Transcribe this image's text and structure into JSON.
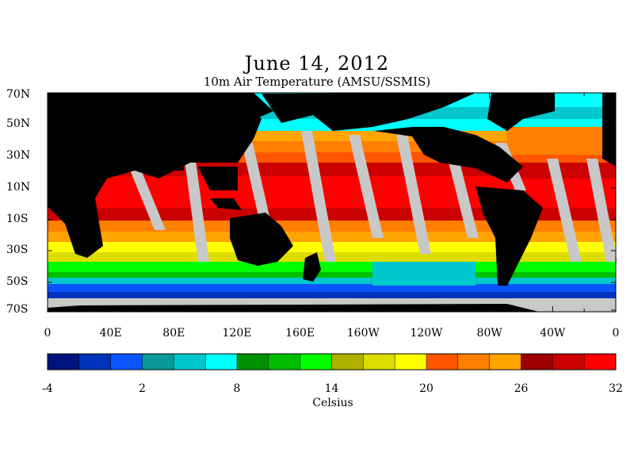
{
  "title": "June 14, 2012",
  "subtitle": "10m Air Temperature (AMSU/SSMIS)",
  "lat_labels": [
    "70N",
    "50N",
    "30N",
    "10N",
    "10S",
    "30S",
    "50S",
    "70S"
  ],
  "lon_labels": [
    "0",
    "40E",
    "80E",
    "120E",
    "160E",
    "160W",
    "120W",
    "80W",
    "40W",
    "0"
  ],
  "colorbar": {
    "unit": "Celsius",
    "tick_labels": [
      "-4",
      "2",
      "8",
      "14",
      "20",
      "26",
      "32"
    ],
    "colors": [
      "#00137f",
      "#0033bb",
      "#0a55ff",
      "#0a9999",
      "#00c8cc",
      "#00ffff",
      "#009100",
      "#00bf00",
      "#00ff00",
      "#b0b000",
      "#dddd00",
      "#ffff00",
      "#ff5500",
      "#ff7f00",
      "#ffa400",
      "#9c0000",
      "#cc0000",
      "#ff0000"
    ]
  },
  "colors": {
    "land": "#000000",
    "missing": "#c8c8c8"
  }
}
